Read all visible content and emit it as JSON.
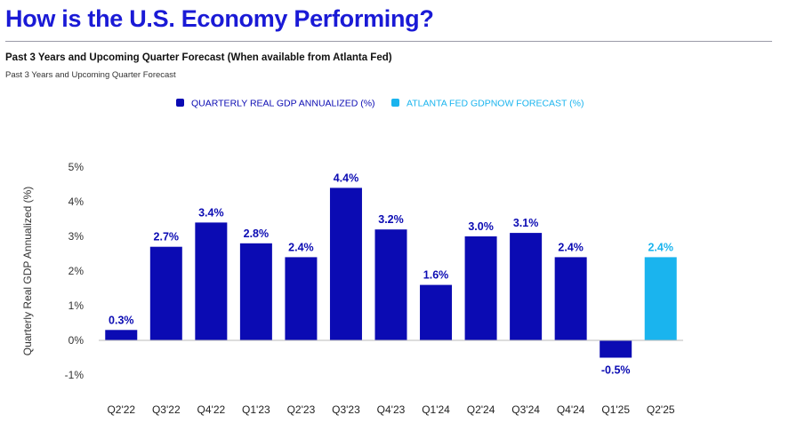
{
  "header": {
    "title": "How is the U.S. Economy Performing?",
    "subtitle": "Past 3 Years and Upcoming Quarter Forecast (When available from Atlanta Fed)",
    "subnote": "Past 3 Years and Upcoming Quarter Forecast"
  },
  "colors": {
    "title": "#1a1ad6",
    "actual": "#0b0bb3",
    "forecast": "#1ab4ee"
  },
  "chart_data": {
    "type": "bar",
    "categories": [
      "Q2'22",
      "Q3'22",
      "Q4'22",
      "Q1'23",
      "Q2'23",
      "Q3'23",
      "Q4'23",
      "Q1'24",
      "Q2'24",
      "Q3'24",
      "Q4'24",
      "Q1'25",
      "Q2'25"
    ],
    "values": [
      0.3,
      2.7,
      3.4,
      2.8,
      2.4,
      4.4,
      3.2,
      1.6,
      3.0,
      3.1,
      2.4,
      -0.5,
      2.4
    ],
    "value_labels": [
      "0.3%",
      "2.7%",
      "3.4%",
      "2.8%",
      "2.4%",
      "4.4%",
      "3.2%",
      "1.6%",
      "3.0%",
      "3.1%",
      "2.4%",
      "-0.5%",
      "2.4%"
    ],
    "series_kind": [
      "actual",
      "actual",
      "actual",
      "actual",
      "actual",
      "actual",
      "actual",
      "actual",
      "actual",
      "actual",
      "actual",
      "actual",
      "forecast"
    ],
    "legend": [
      {
        "name": "QUARTERLY REAL GDP ANNUALIZED (%)",
        "kind": "actual"
      },
      {
        "name": "ATLANTA FED GDPNOW FORECAST (%)",
        "kind": "forecast"
      }
    ],
    "legend_position": "top-center",
    "ylabel": "Quarterly Real GDP Annualized (%)",
    "xlabel": "",
    "ylim": [
      -1,
      5
    ],
    "yticks": [
      5,
      4,
      3,
      2,
      1,
      0,
      -1
    ],
    "ytick_labels": [
      "5%",
      "4%",
      "3%",
      "2%",
      "1%",
      "0%",
      "-1%"
    ],
    "grid": false
  }
}
